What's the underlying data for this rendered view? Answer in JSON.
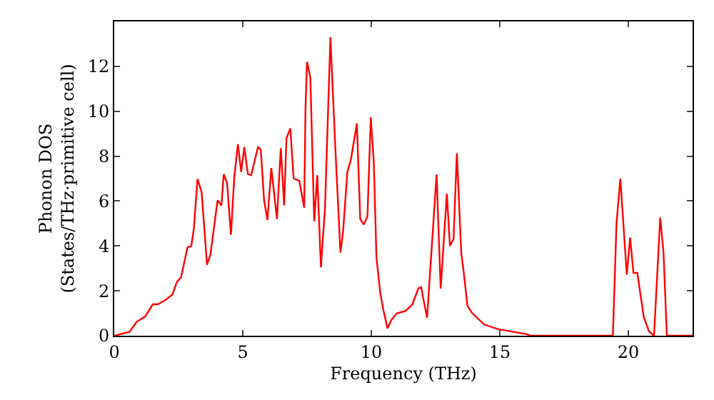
{
  "chart_data": {
    "type": "line",
    "xlabel": "Frequency (THz)",
    "ylabel": "Phonon DOS\n(States/THz·primitive cell)",
    "x": [
      0,
      0.6,
      0.87,
      1.2,
      1.5,
      1.7,
      2.0,
      2.26,
      2.44,
      2.6,
      2.85,
      3.0,
      3.1,
      3.24,
      3.4,
      3.61,
      3.74,
      4.02,
      4.17,
      4.26,
      4.39,
      4.54,
      4.67,
      4.81,
      4.94,
      5.06,
      5.2,
      5.33,
      5.59,
      5.7,
      5.83,
      5.96,
      6.11,
      6.33,
      6.48,
      6.61,
      6.7,
      6.85,
      6.98,
      7.2,
      7.39,
      7.44,
      7.5,
      7.63,
      7.78,
      7.9,
      8.04,
      8.2,
      8.41,
      8.6,
      8.8,
      8.9,
      9.07,
      9.2,
      9.44,
      9.57,
      9.7,
      9.85,
      9.98,
      10.1,
      10.2,
      10.35,
      10.46,
      10.63,
      10.78,
      11.0,
      11.33,
      11.6,
      11.83,
      11.94,
      12.17,
      12.35,
      12.54,
      12.7,
      12.94,
      13.06,
      13.2,
      13.33,
      13.5,
      13.6,
      13.74,
      13.93,
      14.39,
      14.94,
      16.05,
      16.2,
      19.4,
      19.54,
      19.69,
      19.94,
      20.07,
      20.2,
      20.35,
      20.6,
      20.8,
      21.0,
      21.24,
      21.37,
      21.5,
      22.5
    ],
    "series": [
      {
        "color": "#ff0000",
        "values": [
          0,
          0.18,
          0.62,
          0.85,
          1.4,
          1.4,
          1.6,
          1.83,
          2.4,
          2.6,
          3.93,
          4.0,
          4.8,
          6.98,
          6.4,
          3.16,
          3.6,
          6.03,
          5.8,
          7.2,
          6.8,
          4.5,
          7.05,
          8.53,
          7.3,
          8.4,
          7.2,
          7.15,
          8.4,
          8.3,
          6.03,
          5.15,
          7.47,
          5.2,
          8.35,
          5.8,
          8.8,
          9.24,
          7.0,
          6.9,
          5.7,
          10.1,
          12.2,
          11.5,
          5.1,
          7.15,
          3.05,
          5.7,
          13.3,
          8.4,
          3.7,
          4.6,
          7.3,
          7.8,
          9.46,
          5.2,
          4.95,
          5.3,
          9.73,
          7.7,
          3.5,
          1.9,
          1.2,
          0.33,
          0.7,
          1.0,
          1.1,
          1.4,
          2.1,
          2.16,
          0.8,
          3.9,
          7.18,
          2.1,
          6.32,
          4.0,
          4.3,
          8.13,
          3.7,
          2.8,
          1.33,
          1.0,
          0.5,
          0.29,
          0.07,
          0,
          0,
          5.0,
          7.0,
          2.72,
          4.37,
          2.8,
          2.8,
          0.84,
          0.2,
          0,
          5.26,
          3.7,
          0,
          0
        ]
      }
    ],
    "xlim": [
      0,
      22.5
    ],
    "ylim": [
      0,
      14
    ],
    "xticks": [
      0,
      5,
      10,
      15,
      20
    ],
    "yticks": [
      0,
      2,
      4,
      6,
      8,
      10,
      12
    ],
    "marker": "none",
    "line_style": "solid"
  }
}
